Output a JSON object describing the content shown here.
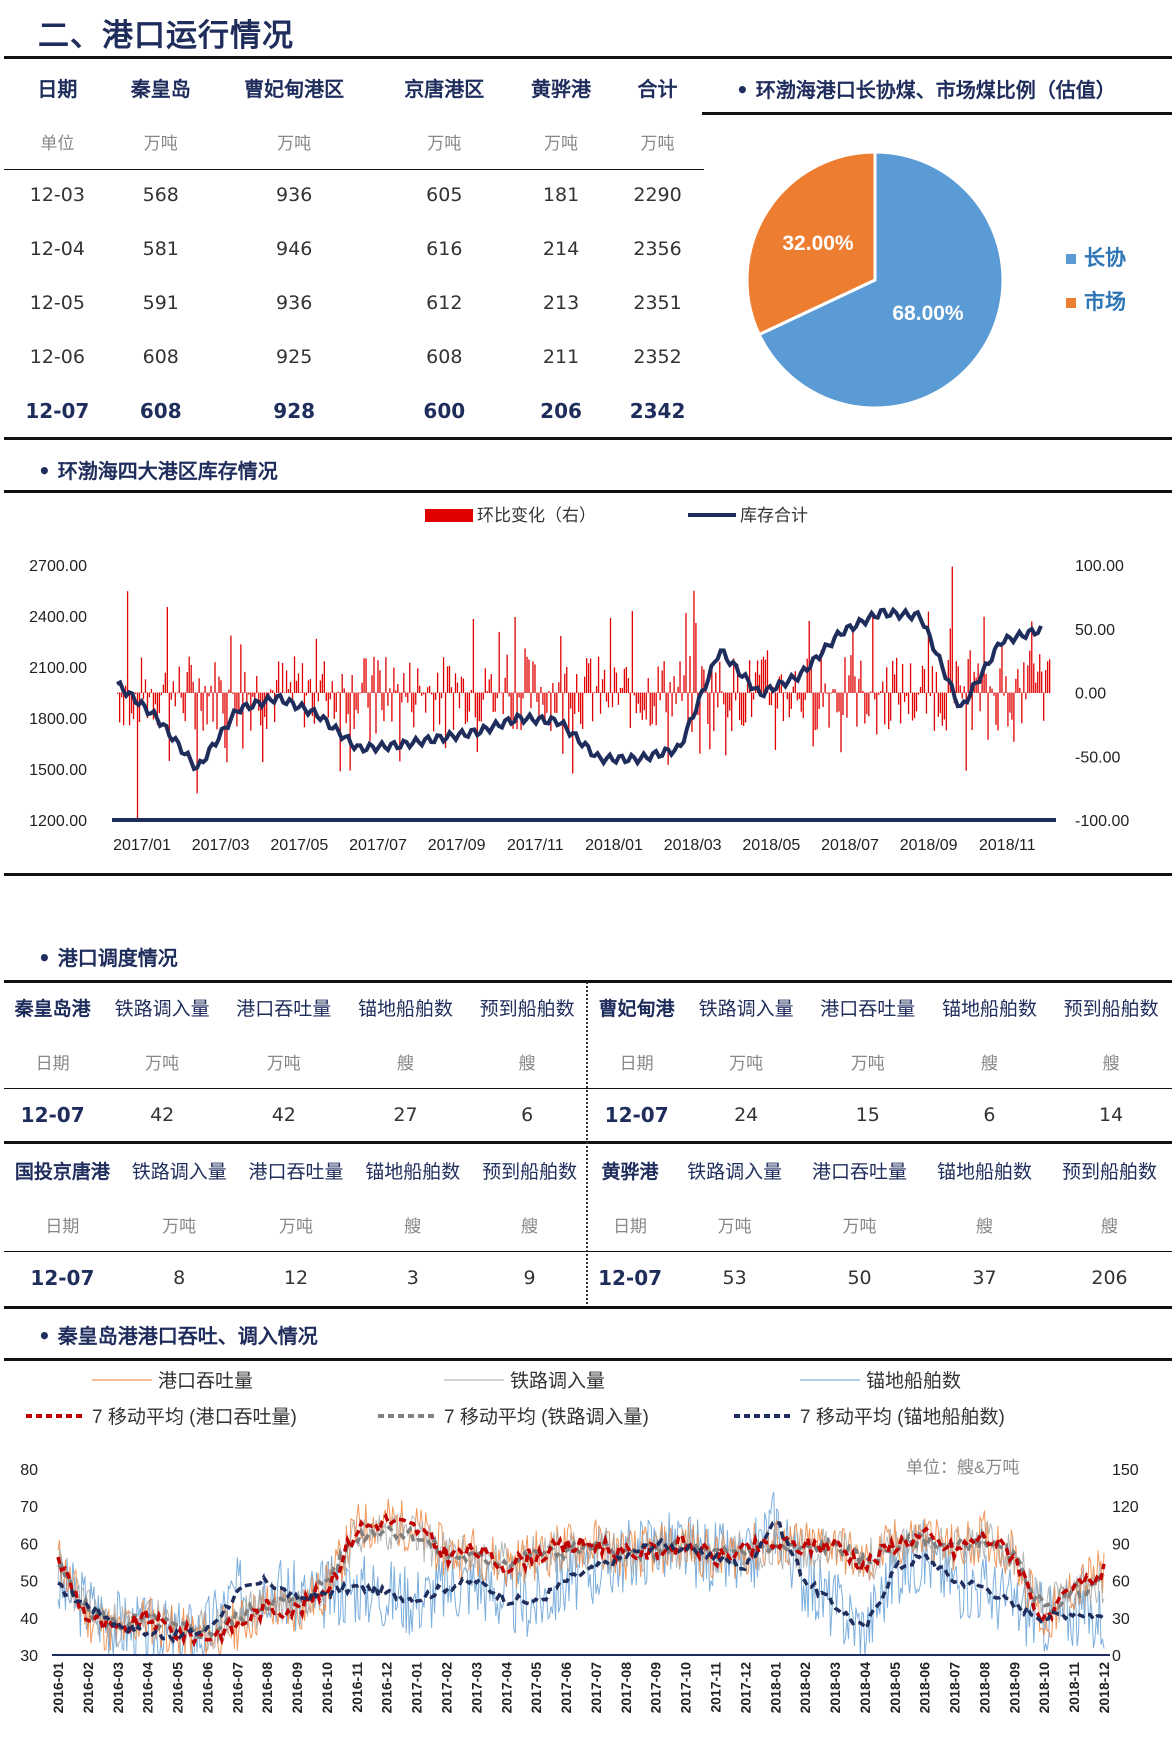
{
  "section_title": "二、港口运行情况",
  "port_table": {
    "headers": [
      "日期",
      "秦皇岛",
      "曹妃甸港区",
      "京唐港区",
      "黄骅港",
      "合计"
    ],
    "units": [
      "单位",
      "万吨",
      "万吨",
      "万吨",
      "万吨",
      "万吨"
    ],
    "rows": [
      [
        "12-03",
        "568",
        "936",
        "605",
        "181",
        "2290"
      ],
      [
        "12-04",
        "581",
        "946",
        "616",
        "214",
        "2356"
      ],
      [
        "12-05",
        "591",
        "936",
        "612",
        "213",
        "2351"
      ],
      [
        "12-06",
        "608",
        "925",
        "608",
        "211",
        "2352"
      ],
      [
        "12-07",
        "608",
        "928",
        "600",
        "206",
        "2342"
      ]
    ]
  },
  "pie": {
    "title": "• 环渤海港口长协煤、市场煤比例（估值）",
    "legend": [
      "长协",
      "市场"
    ],
    "colors": {
      "long": "#5b9bd5",
      "market": "#ed7d31"
    },
    "chart_data": {
      "type": "pie",
      "labels": [
        "长协",
        "市场"
      ],
      "values": [
        68.0,
        32.0
      ],
      "data_labels": [
        "68.00%",
        "32.00%"
      ]
    }
  },
  "inventory": {
    "title": "• 环渤海四大港区库存情况",
    "legend": [
      "环比变化（右）",
      "库存合计"
    ],
    "colors": {
      "bar": "#e00000",
      "line": "#1f2d5c"
    },
    "chart_data": {
      "type": "line",
      "x_ticks": [
        "2017/01",
        "2017/03",
        "2017/05",
        "2017/07",
        "2017/09",
        "2017/11",
        "2018/01",
        "2018/03",
        "2018/05",
        "2018/07",
        "2018/09",
        "2018/11"
      ],
      "y_left_ticks": [
        "2700.00",
        "2400.00",
        "2100.00",
        "1800.00",
        "1500.00",
        "1200.00"
      ],
      "y_right_ticks": [
        "100.00",
        "50.00",
        "0.00",
        "-50.00",
        "-100.00"
      ],
      "ylim_left": [
        1200,
        2700
      ],
      "ylim_right": [
        -100,
        100
      ],
      "series": [
        {
          "name": "库存合计",
          "axis": "left",
          "x": [
            "2017/01",
            "2017/02",
            "2017/03",
            "2017/04",
            "2017/05",
            "2017/06",
            "2017/07",
            "2017/08",
            "2017/09",
            "2017/10",
            "2017/11",
            "2017/12",
            "2018/01",
            "2018/02",
            "2018/03",
            "2018/04",
            "2018/05",
            "2018/06",
            "2018/07",
            "2018/08",
            "2018/09",
            "2018/10",
            "2018/11",
            "2018/12"
          ],
          "values": [
            2000,
            1800,
            1500,
            1850,
            1920,
            1820,
            1620,
            1640,
            1680,
            1720,
            1800,
            1780,
            1560,
            1560,
            1620,
            2200,
            1940,
            2050,
            2300,
            2420,
            2400,
            1850,
            2250,
            2320
          ]
        },
        {
          "name": "环比变化（右）",
          "axis": "right",
          "type": "bar",
          "note_values": "daily changes roughly between -100 and 100"
        }
      ]
    }
  },
  "schedule": {
    "title": "• 港口调度情况",
    "blocks": [
      {
        "port": "秦皇岛港",
        "cols": [
          "铁路调入量",
          "港口吞吐量",
          "锚地船舶数",
          "预到船舶数"
        ],
        "units": [
          "日期",
          "万吨",
          "万吨",
          "艘",
          "艘"
        ],
        "values": [
          "12-07",
          "42",
          "42",
          "27",
          "6"
        ]
      },
      {
        "port": "曹妃甸港",
        "cols": [
          "铁路调入量",
          "港口吞吐量",
          "锚地船舶数",
          "预到船舶数"
        ],
        "units": [
          "日期",
          "万吨",
          "万吨",
          "艘",
          "艘"
        ],
        "values": [
          "12-07",
          "24",
          "15",
          "6",
          "14"
        ]
      },
      {
        "port": "国投京唐港",
        "cols": [
          "铁路调入量",
          "港口吞吐量",
          "锚地船舶数",
          "预到船舶数"
        ],
        "units": [
          "日期",
          "万吨",
          "万吨",
          "艘",
          "艘"
        ],
        "values": [
          "12-07",
          "8",
          "12",
          "3",
          "9"
        ]
      },
      {
        "port": "黄骅港",
        "cols": [
          "铁路调入量",
          "港口吞吐量",
          "锚地船舶数",
          "预到船舶数"
        ],
        "units": [
          "日期",
          "万吨",
          "万吨",
          "艘",
          "艘"
        ],
        "values": [
          "12-07",
          "53",
          "50",
          "37",
          "206"
        ]
      }
    ]
  },
  "qhd": {
    "title": "• 秦皇岛港港口吞吐、调入情况",
    "legend": [
      "港口吞吐量",
      "铁路调入量",
      "锚地船舶数",
      "7 移动平均 (港口吞吐量)",
      "7 移动平均 (铁路调入量)",
      "7 移动平均 (锚地船舶数)"
    ],
    "unit_note": "单位：艘&万吨",
    "colors": {
      "throughput": "#ed7d31",
      "rail": "#a5a5a5",
      "anchor": "#5b9bd5",
      "ma_throughput": "#c00000",
      "ma_rail": "#7f7f7f",
      "ma_anchor": "#1f2d5c"
    },
    "chart_data": {
      "type": "line",
      "x_ticks": [
        "2016-01",
        "2016-02",
        "2016-03",
        "2016-04",
        "2016-05",
        "2016-06",
        "2016-07",
        "2016-08",
        "2016-09",
        "2016-10",
        "2016-11",
        "2016-12",
        "2017-01",
        "2017-02",
        "2017-03",
        "2017-04",
        "2017-05",
        "2017-06",
        "2017-07",
        "2017-08",
        "2017-09",
        "2017-10",
        "2017-11",
        "2017-12",
        "2018-01",
        "2018-02",
        "2018-03",
        "2018-04",
        "2018-05",
        "2018-06",
        "2018-07",
        "2018-08",
        "2018-09",
        "2018-10",
        "2018-11",
        "2018-12"
      ],
      "y_left_ticks": [
        "80",
        "70",
        "60",
        "50",
        "40",
        "30"
      ],
      "y_right_ticks": [
        "150",
        "120",
        "90",
        "60",
        "30",
        "0"
      ],
      "ylim_left": [
        30,
        80
      ],
      "ylim_right": [
        0,
        150
      ],
      "series": [
        {
          "name": "7 移动平均 (港口吞吐量)",
          "axis": "left",
          "values": [
            56,
            40,
            36,
            40,
            36,
            35,
            38,
            43,
            42,
            48,
            64,
            66,
            64,
            57,
            58,
            54,
            57,
            59,
            60,
            57,
            58,
            60,
            56,
            58,
            60,
            59,
            60,
            54,
            60,
            62,
            58,
            62,
            57,
            38,
            48,
            52
          ]
        },
        {
          "name": "7 移动平均 (铁路调入量)",
          "axis": "left",
          "values": [
            54,
            42,
            38,
            40,
            37,
            36,
            40,
            44,
            44,
            50,
            62,
            64,
            62,
            57,
            56,
            55,
            57,
            58,
            59,
            57,
            58,
            59,
            57,
            58,
            59,
            58,
            60,
            55,
            59,
            61,
            59,
            61,
            56,
            42,
            47,
            50
          ]
        },
        {
          "name": "7 移动平均 (锚地船舶数)",
          "axis": "right",
          "values": [
            55,
            40,
            25,
            18,
            15,
            20,
            50,
            60,
            45,
            50,
            55,
            50,
            45,
            55,
            60,
            45,
            42,
            60,
            70,
            80,
            90,
            85,
            80,
            70,
            110,
            60,
            40,
            20,
            70,
            80,
            60,
            55,
            40,
            30,
            35,
            30
          ]
        }
      ]
    }
  }
}
